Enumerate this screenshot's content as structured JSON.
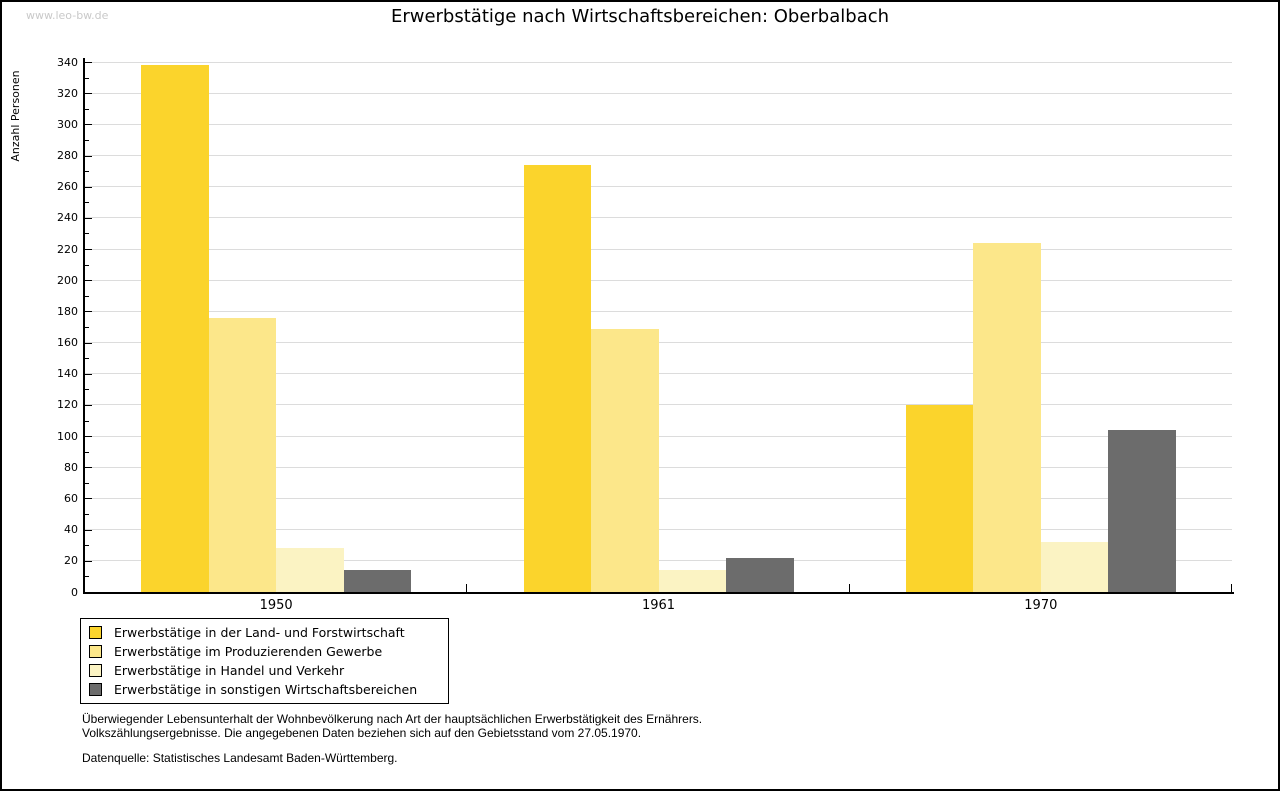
{
  "watermark": "www.leo-bw.de",
  "title": "Erwerbstätige nach Wirtschaftsbereichen: Oberbalbach",
  "chart_data": {
    "type": "bar",
    "title": "Erwerbstätige nach Wirtschaftsbereichen: Oberbalbach",
    "xlabel": "",
    "ylabel": "Anzahl Personen",
    "categories": [
      "1950",
      "1961",
      "1970"
    ],
    "series": [
      {
        "name": "Erwerbstätige in der Land- und Forstwirtschaft",
        "color": "#FBD42C",
        "values": [
          338,
          274,
          120
        ]
      },
      {
        "name": "Erwerbstätige im Produzierenden Gewerbe",
        "color": "#FCE78A",
        "values": [
          176,
          169,
          224
        ]
      },
      {
        "name": "Erwerbstätige in Handel und Verkehr",
        "color": "#FBF3C3",
        "values": [
          28,
          14,
          32
        ]
      },
      {
        "name": "Erwerbstätige in sonstigen Wirtschaftsbereichen",
        "color": "#6C6C6C",
        "values": [
          14,
          22,
          104
        ]
      }
    ],
    "ylim": [
      0,
      340
    ],
    "ytick_major": 20,
    "ytick_minor": 10,
    "grid": true,
    "gridline_color": "#DCDCDC",
    "legend_position": "bottom-left"
  },
  "footer": {
    "line1": "Überwiegender Lebensunterhalt der Wohnbevölkerung nach Art der hauptsächlichen Erwerbstätigkeit des Ernährers.",
    "line2": "Volkszählungsergebnisse. Die angegebenen Daten beziehen sich auf den Gebietsstand vom 27.05.1970.",
    "source": "Datenquelle: Statistisches Landesamt Baden-Württemberg."
  }
}
